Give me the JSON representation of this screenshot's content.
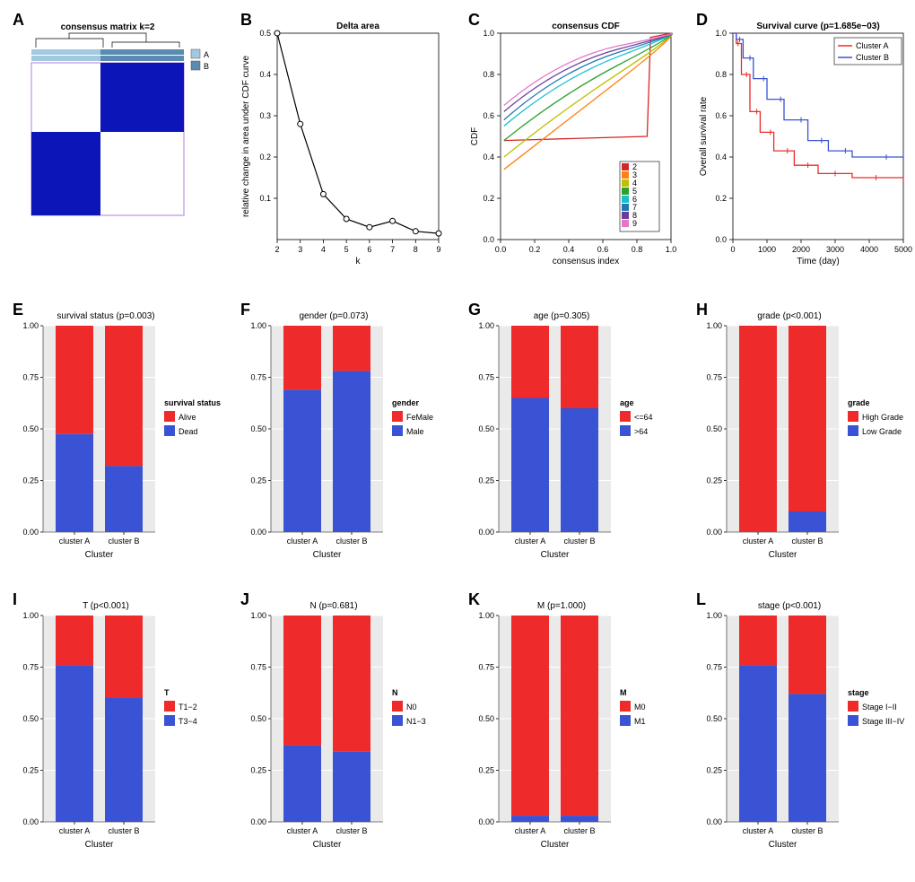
{
  "colors": {
    "red": "#ee2a2a",
    "blue": "#3953d4",
    "darkblue": "#0b15b8",
    "lightblue": "#a2c9e0",
    "steelblue": "#5a8bb0",
    "black": "#000000",
    "gray": "#888888",
    "white": "#ffffff"
  },
  "panelA": {
    "letter": "A",
    "title": "consensus matrix k=2",
    "legend": [
      "A",
      "B"
    ],
    "legend_colors": [
      "#a2c9e0",
      "#5a8bb0"
    ],
    "block_color": "#0b15b8",
    "bg": "#ffffff",
    "split_ratio": 0.45
  },
  "panelB": {
    "letter": "B",
    "title": "Delta area",
    "xlabel": "k",
    "ylabel": "relative change in area under CDF curve",
    "x": [
      2,
      3,
      4,
      5,
      6,
      7,
      8,
      9
    ],
    "y": [
      0.5,
      0.28,
      0.11,
      0.05,
      0.03,
      0.045,
      0.02,
      0.015
    ],
    "ylim": [
      0,
      0.5
    ],
    "yticks": [
      0.1,
      0.2,
      0.3,
      0.4,
      0.5
    ],
    "line_color": "#000000",
    "marker_color": "#000000",
    "marker_fill": "#ffffff"
  },
  "panelC": {
    "letter": "C",
    "title": "consensus CDF",
    "xlabel": "consensus index",
    "ylabel": "CDF",
    "xlim": [
      0,
      1
    ],
    "ylim": [
      0,
      1
    ],
    "xticks": [
      0.0,
      0.2,
      0.4,
      0.6,
      0.8,
      1.0
    ],
    "yticks": [
      0.0,
      0.2,
      0.4,
      0.6,
      0.8,
      1.0
    ],
    "legend_labels": [
      "2",
      "3",
      "4",
      "5",
      "6",
      "7",
      "8",
      "9"
    ],
    "legend_colors": [
      "#d62728",
      "#ff7f0e",
      "#bfbf00",
      "#2ca02c",
      "#17becf",
      "#1f77b4",
      "#6a3d9a",
      "#e377c2"
    ],
    "curves": [
      {
        "color": "#d62728",
        "start": 0.48,
        "mid": 0.5,
        "end": 1.0,
        "bend": 0.88
      },
      {
        "color": "#ff7f0e",
        "start": 0.34,
        "mid": 0.55,
        "end": 1.0,
        "bend": 0.55
      },
      {
        "color": "#bfbf00",
        "start": 0.4,
        "mid": 0.62,
        "end": 1.0,
        "bend": 0.55
      },
      {
        "color": "#2ca02c",
        "start": 0.48,
        "mid": 0.7,
        "end": 1.0,
        "bend": 0.55
      },
      {
        "color": "#17becf",
        "start": 0.55,
        "mid": 0.78,
        "end": 1.0,
        "bend": 0.55
      },
      {
        "color": "#1f77b4",
        "start": 0.58,
        "mid": 0.82,
        "end": 1.0,
        "bend": 0.55
      },
      {
        "color": "#6a3d9a",
        "start": 0.62,
        "mid": 0.85,
        "end": 1.0,
        "bend": 0.55
      },
      {
        "color": "#e377c2",
        "start": 0.65,
        "mid": 0.88,
        "end": 1.0,
        "bend": 0.55
      }
    ]
  },
  "panelD": {
    "letter": "D",
    "title": "Survival curve (p=1.685e−03)",
    "xlabel": "Time (day)",
    "ylabel": "Overall survival rate",
    "xlim": [
      0,
      5000
    ],
    "ylim": [
      0,
      1
    ],
    "xticks": [
      0,
      1000,
      2000,
      3000,
      4000,
      5000
    ],
    "yticks": [
      0.0,
      0.2,
      0.4,
      0.6,
      0.8,
      1.0
    ],
    "legend": [
      {
        "label": "Cluster A",
        "color": "#ee2a2a"
      },
      {
        "label": "Cluster B",
        "color": "#3953d4"
      }
    ],
    "curveA": [
      [
        0,
        1.0
      ],
      [
        100,
        0.95
      ],
      [
        250,
        0.8
      ],
      [
        500,
        0.62
      ],
      [
        800,
        0.52
      ],
      [
        1200,
        0.43
      ],
      [
        1800,
        0.36
      ],
      [
        2500,
        0.32
      ],
      [
        3500,
        0.3
      ],
      [
        5000,
        0.28
      ]
    ],
    "curveB": [
      [
        0,
        1.0
      ],
      [
        100,
        0.97
      ],
      [
        300,
        0.88
      ],
      [
        600,
        0.78
      ],
      [
        1000,
        0.68
      ],
      [
        1500,
        0.58
      ],
      [
        2200,
        0.48
      ],
      [
        2800,
        0.43
      ],
      [
        3500,
        0.4
      ],
      [
        5000,
        0.39
      ]
    ]
  },
  "bars_common": {
    "xlabel": "Cluster",
    "xticks": [
      "cluster A",
      "cluster B"
    ],
    "yticks": [
      0.0,
      0.25,
      0.5,
      0.75,
      1.0
    ],
    "panel_bg": "#eaeaea",
    "grid_color": "#ffffff",
    "red": "#ee2a2a",
    "blue": "#3953d4"
  },
  "panelE": {
    "letter": "E",
    "title": "survival status (p=0.003)",
    "legend_title": "survival status",
    "legend": [
      "Alive",
      "Dead"
    ],
    "blue_heights": [
      0.475,
      0.32
    ]
  },
  "panelF": {
    "letter": "F",
    "title": "gender (p=0.073)",
    "legend_title": "gender",
    "legend": [
      "FeMale",
      "Male"
    ],
    "blue_heights": [
      0.69,
      0.78
    ]
  },
  "panelG": {
    "letter": "G",
    "title": "age (p=0.305)",
    "legend_title": "age",
    "legend": [
      "<=64",
      ">64"
    ],
    "blue_heights": [
      0.65,
      0.6
    ]
  },
  "panelH": {
    "letter": "H",
    "title": "grade (p<0.001)",
    "legend_title": "grade",
    "legend": [
      "High Grade",
      "Low Grade"
    ],
    "blue_heights": [
      0.0,
      0.1
    ]
  },
  "panelI": {
    "letter": "I",
    "title": "T (p<0.001)",
    "legend_title": "T",
    "legend": [
      "T1−2",
      "T3−4"
    ],
    "blue_heights": [
      0.76,
      0.6
    ]
  },
  "panelJ": {
    "letter": "J",
    "title": "N (p=0.681)",
    "legend_title": "N",
    "legend": [
      "N0",
      "N1−3"
    ],
    "blue_heights": [
      0.37,
      0.34
    ]
  },
  "panelK": {
    "letter": "K",
    "title": "M (p=1.000)",
    "legend_title": "M",
    "legend": [
      "M0",
      "M1"
    ],
    "blue_heights": [
      0.03,
      0.03
    ]
  },
  "panelL": {
    "letter": "L",
    "title": "stage (p<0.001)",
    "legend_title": "stage",
    "legend": [
      "Stage I−II",
      "Stage III−IV"
    ],
    "blue_heights": [
      0.76,
      0.62
    ]
  }
}
